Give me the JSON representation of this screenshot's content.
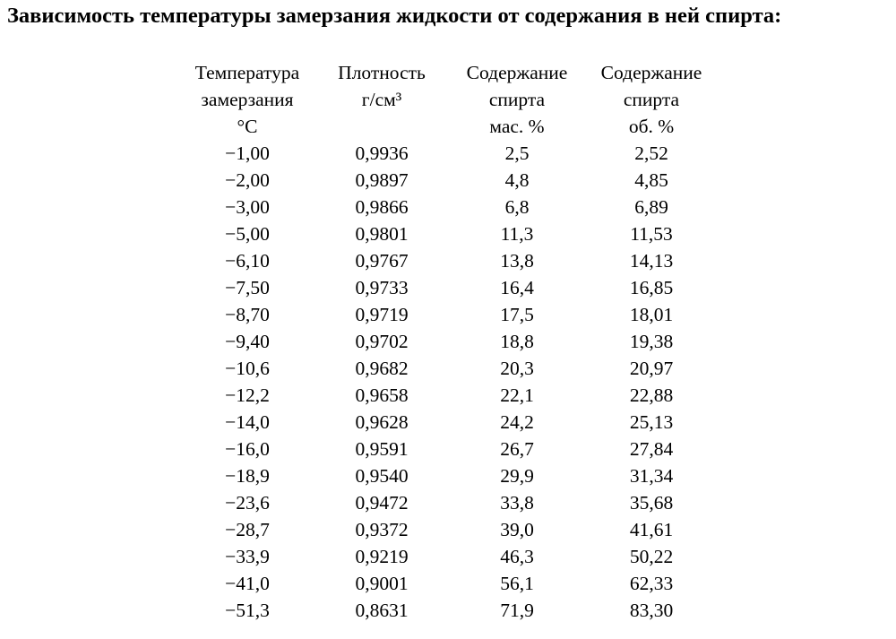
{
  "title": "Зависимость температуры замерзания жидкости от содержания в ней спирта:",
  "headers": [
    [
      "Температура",
      "замерзания",
      "°C"
    ],
    [
      "Плотность",
      "г/см³",
      ""
    ],
    [
      "Содержание",
      "спирта",
      "мас. %"
    ],
    [
      "Содержание",
      "спирта",
      "об. %"
    ]
  ],
  "rows": [
    [
      "−1,00",
      "0,9936",
      "2,5",
      "2,52"
    ],
    [
      "−2,00",
      "0,9897",
      "4,8",
      "4,85"
    ],
    [
      "−3,00",
      "0,9866",
      "6,8",
      "6,89"
    ],
    [
      "−5,00",
      "0,9801",
      "11,3",
      "11,53"
    ],
    [
      "−6,10",
      "0,9767",
      "13,8",
      "14,13"
    ],
    [
      "−7,50",
      "0,9733",
      "16,4",
      "16,85"
    ],
    [
      "−8,70",
      "0,9719",
      "17,5",
      "18,01"
    ],
    [
      "−9,40",
      "0,9702",
      "18,8",
      "19,38"
    ],
    [
      "−10,6",
      "0,9682",
      "20,3",
      "20,97"
    ],
    [
      "−12,2",
      "0,9658",
      "22,1",
      "22,88"
    ],
    [
      "−14,0",
      "0,9628",
      "24,2",
      "25,13"
    ],
    [
      "−16,0",
      "0,9591",
      "26,7",
      "27,84"
    ],
    [
      "−18,9",
      "0,9540",
      "29,9",
      "31,34"
    ],
    [
      "−23,6",
      "0,9472",
      "33,8",
      "35,68"
    ],
    [
      "−28,7",
      "0,9372",
      "39,0",
      "41,61"
    ],
    [
      "−33,9",
      "0,9219",
      "46,3",
      "50,22"
    ],
    [
      "−41,0",
      "0,9001",
      "56,1",
      "62,33"
    ],
    [
      "−51,3",
      "0,8631",
      "71,9",
      "83,30"
    ]
  ]
}
